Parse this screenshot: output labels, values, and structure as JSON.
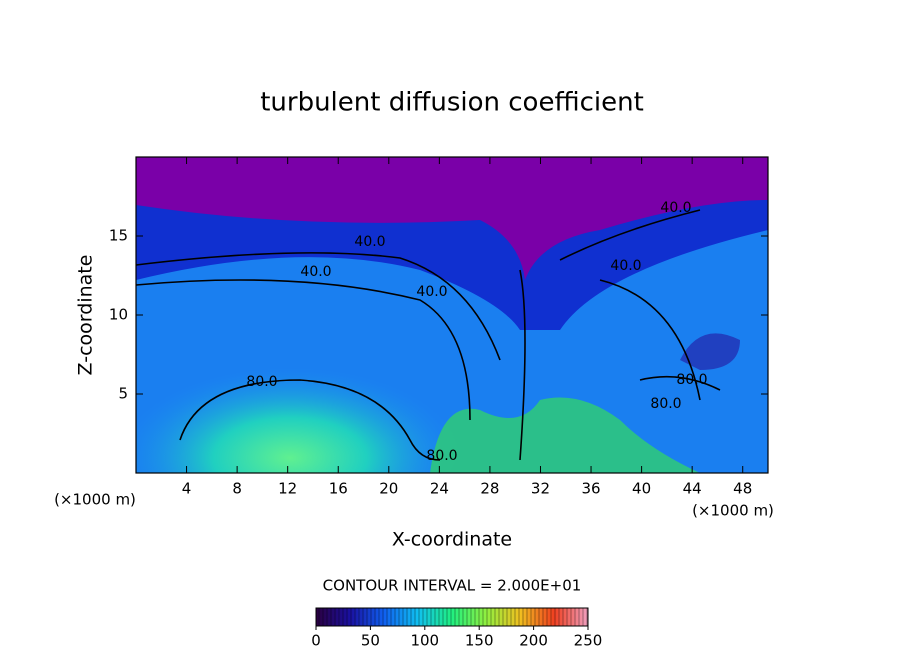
{
  "chart_data": {
    "type": "contour",
    "title": "turbulent diffusion coefficient",
    "x_label": "X-coordinate",
    "y_label": "Z-coordinate",
    "x_unit": "(×1000 m)",
    "x_unit_right": "(×1000 m)",
    "xlim": [
      0,
      50
    ],
    "xticks": [
      4,
      8,
      12,
      16,
      20,
      24,
      28,
      32,
      36,
      40,
      44,
      48
    ],
    "ylim": [
      0,
      20
    ],
    "yticks": [
      5,
      10,
      15
    ],
    "contour_interval": "CONTOUR INTERVAL = 2.000E+01",
    "contour_labels": [
      "40.0",
      "40.0",
      "40.0",
      "40.0",
      "40.0",
      "80.0",
      "80.0",
      "80.0",
      "80.0"
    ],
    "clim": [
      0,
      250
    ],
    "cticks": [
      0,
      50,
      100,
      150,
      200,
      250
    ],
    "colormap": [
      "#2a0040",
      "#1a10a0",
      "#1060f0",
      "#10c0f0",
      "#20f080",
      "#90f040",
      "#f0c020",
      "#f04020",
      "#f0a0c0"
    ]
  }
}
